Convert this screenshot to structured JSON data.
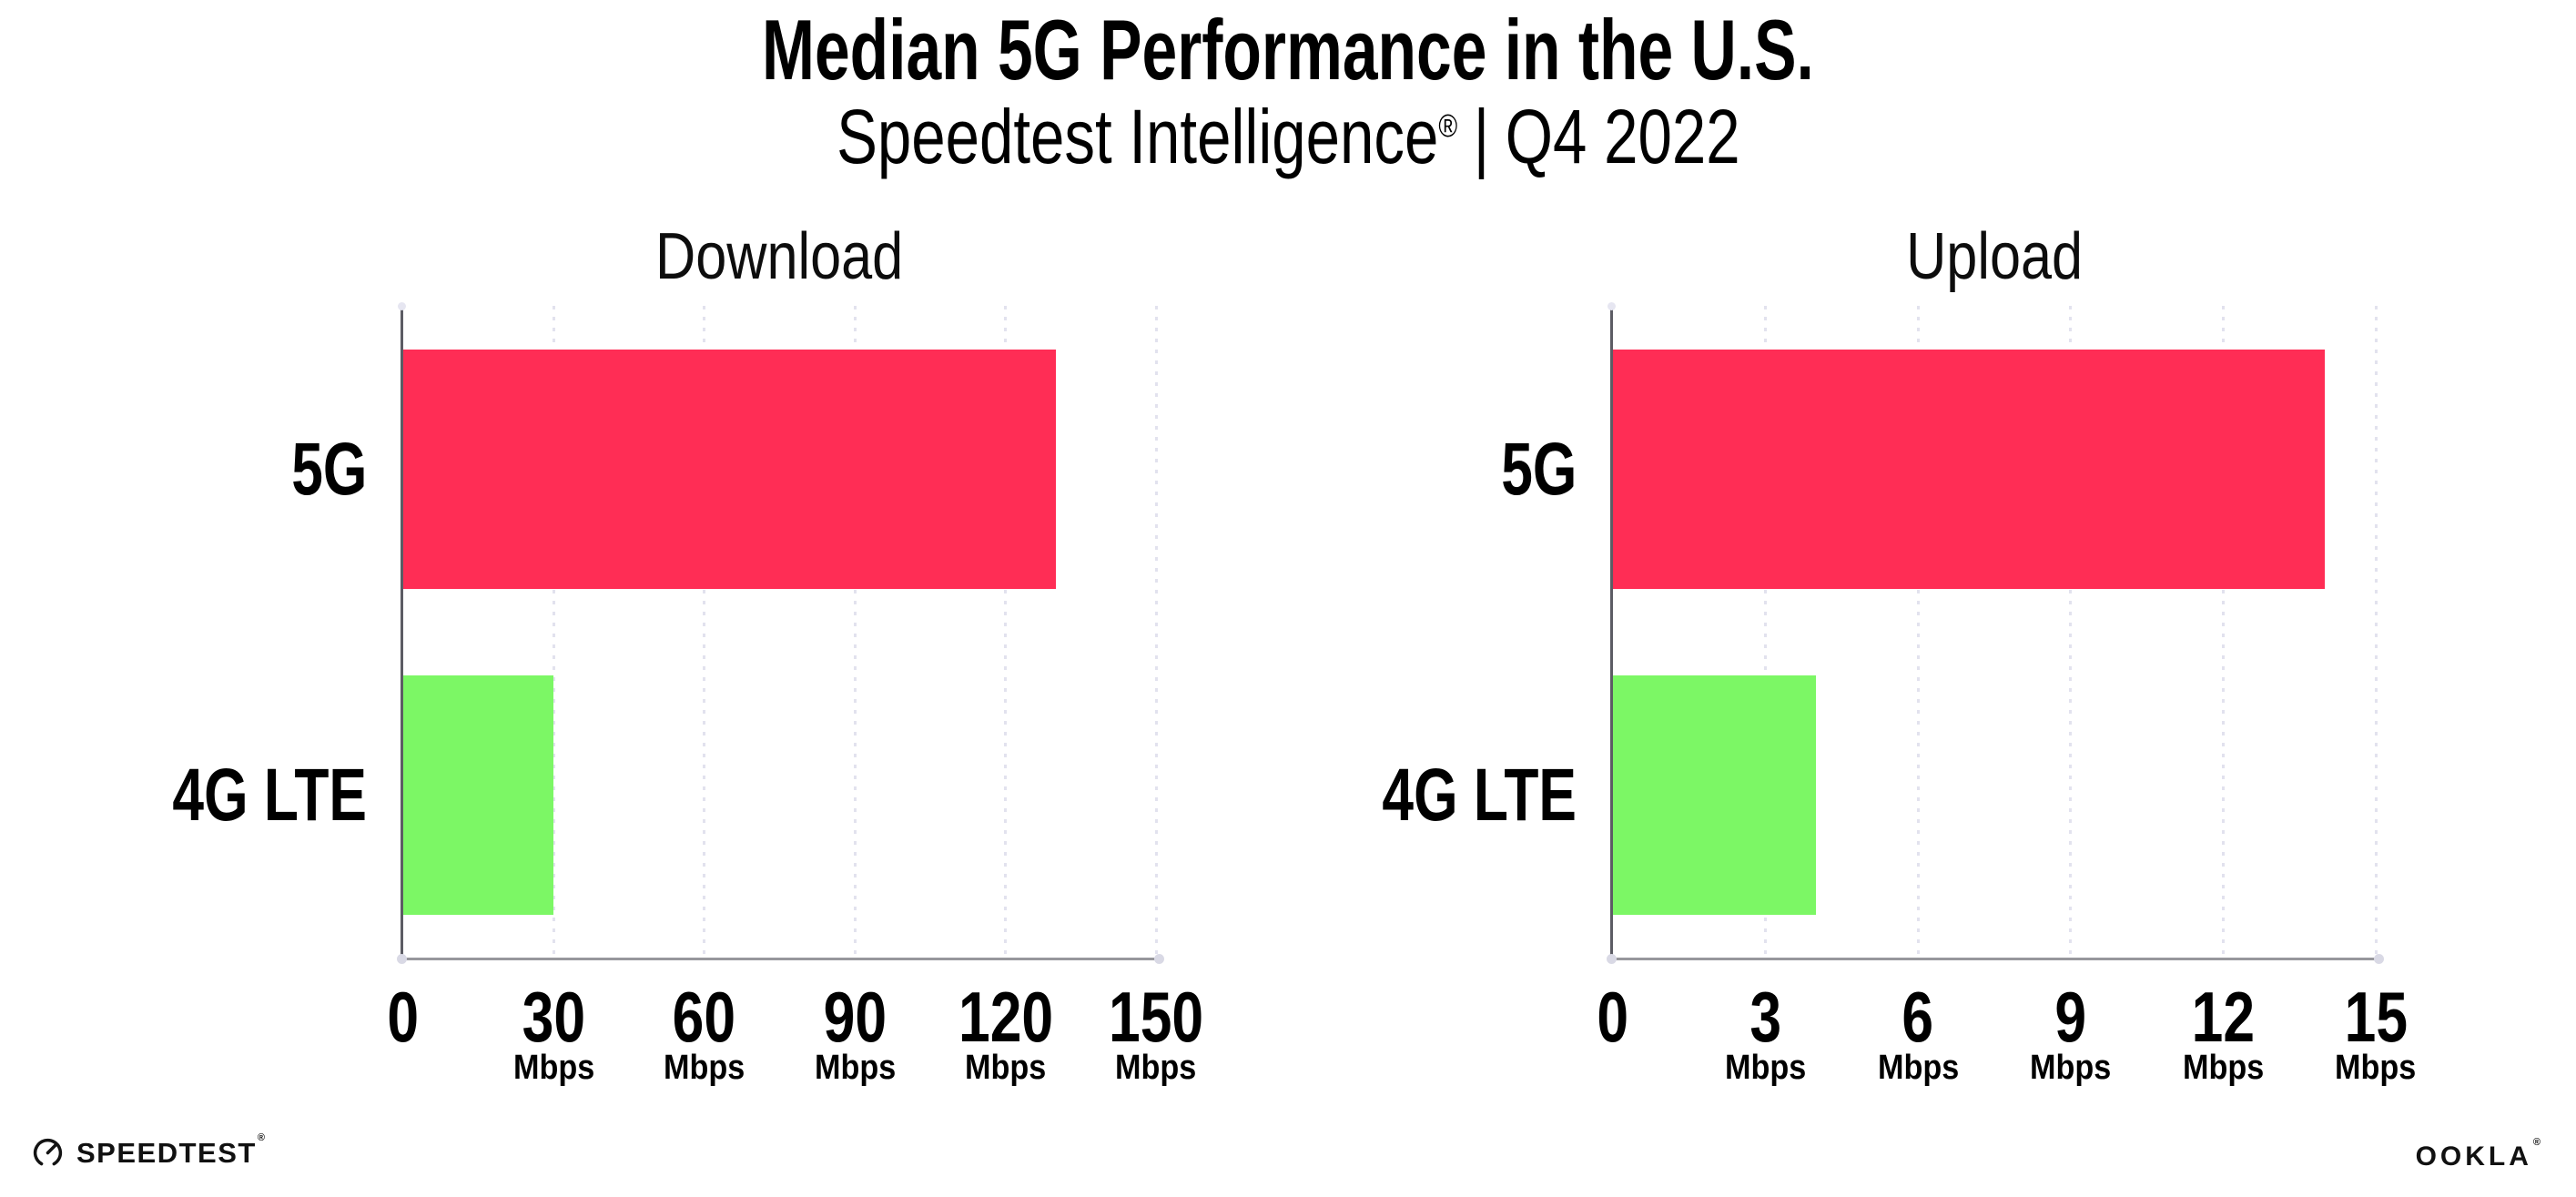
{
  "page_title": "Median 5G Performance in the U.S.",
  "subtitle": {
    "product": "Speedtest Intelligence",
    "registered_mark": "®",
    "separator": "|",
    "period": "Q4 2022"
  },
  "colors": {
    "background": "#FFFFFF",
    "bar_5g": "#FF2D55",
    "bar_4g_lte": "#7CF765",
    "y_axis_line": "#5C5C64",
    "x_axis_line": "#97979C",
    "gridline_dots": "#E2E2EE",
    "text": "#000000"
  },
  "footer": {
    "speedtest_wordmark": "SPEEDTEST",
    "speedtest_mark": "®",
    "ookla_wordmark": "OOKLA",
    "ookla_mark": "®"
  },
  "chart_data": [
    {
      "type": "bar",
      "orientation": "horizontal",
      "title": "Download",
      "categories": [
        "5G",
        "4G LTE"
      ],
      "values": [
        130,
        30
      ],
      "unit": "Mbps",
      "xlabel": "",
      "ylabel": "",
      "xlim": [
        0,
        150
      ],
      "xticks": [
        0,
        30,
        60,
        90,
        120,
        150
      ],
      "unit_under_zero_tick": false,
      "grid": "dotted-vertical",
      "legend": "none",
      "bar_colors": [
        "#FF2D55",
        "#7CF765"
      ]
    },
    {
      "type": "bar",
      "orientation": "horizontal",
      "title": "Upload",
      "categories": [
        "5G",
        "4G LTE"
      ],
      "values": [
        14,
        4
      ],
      "unit": "Mbps",
      "xlabel": "",
      "ylabel": "",
      "xlim": [
        0,
        15
      ],
      "xticks": [
        0,
        3,
        6,
        9,
        12,
        15
      ],
      "unit_under_zero_tick": false,
      "grid": "dotted-vertical",
      "legend": "none",
      "bar_colors": [
        "#FF2D55",
        "#7CF765"
      ]
    }
  ]
}
